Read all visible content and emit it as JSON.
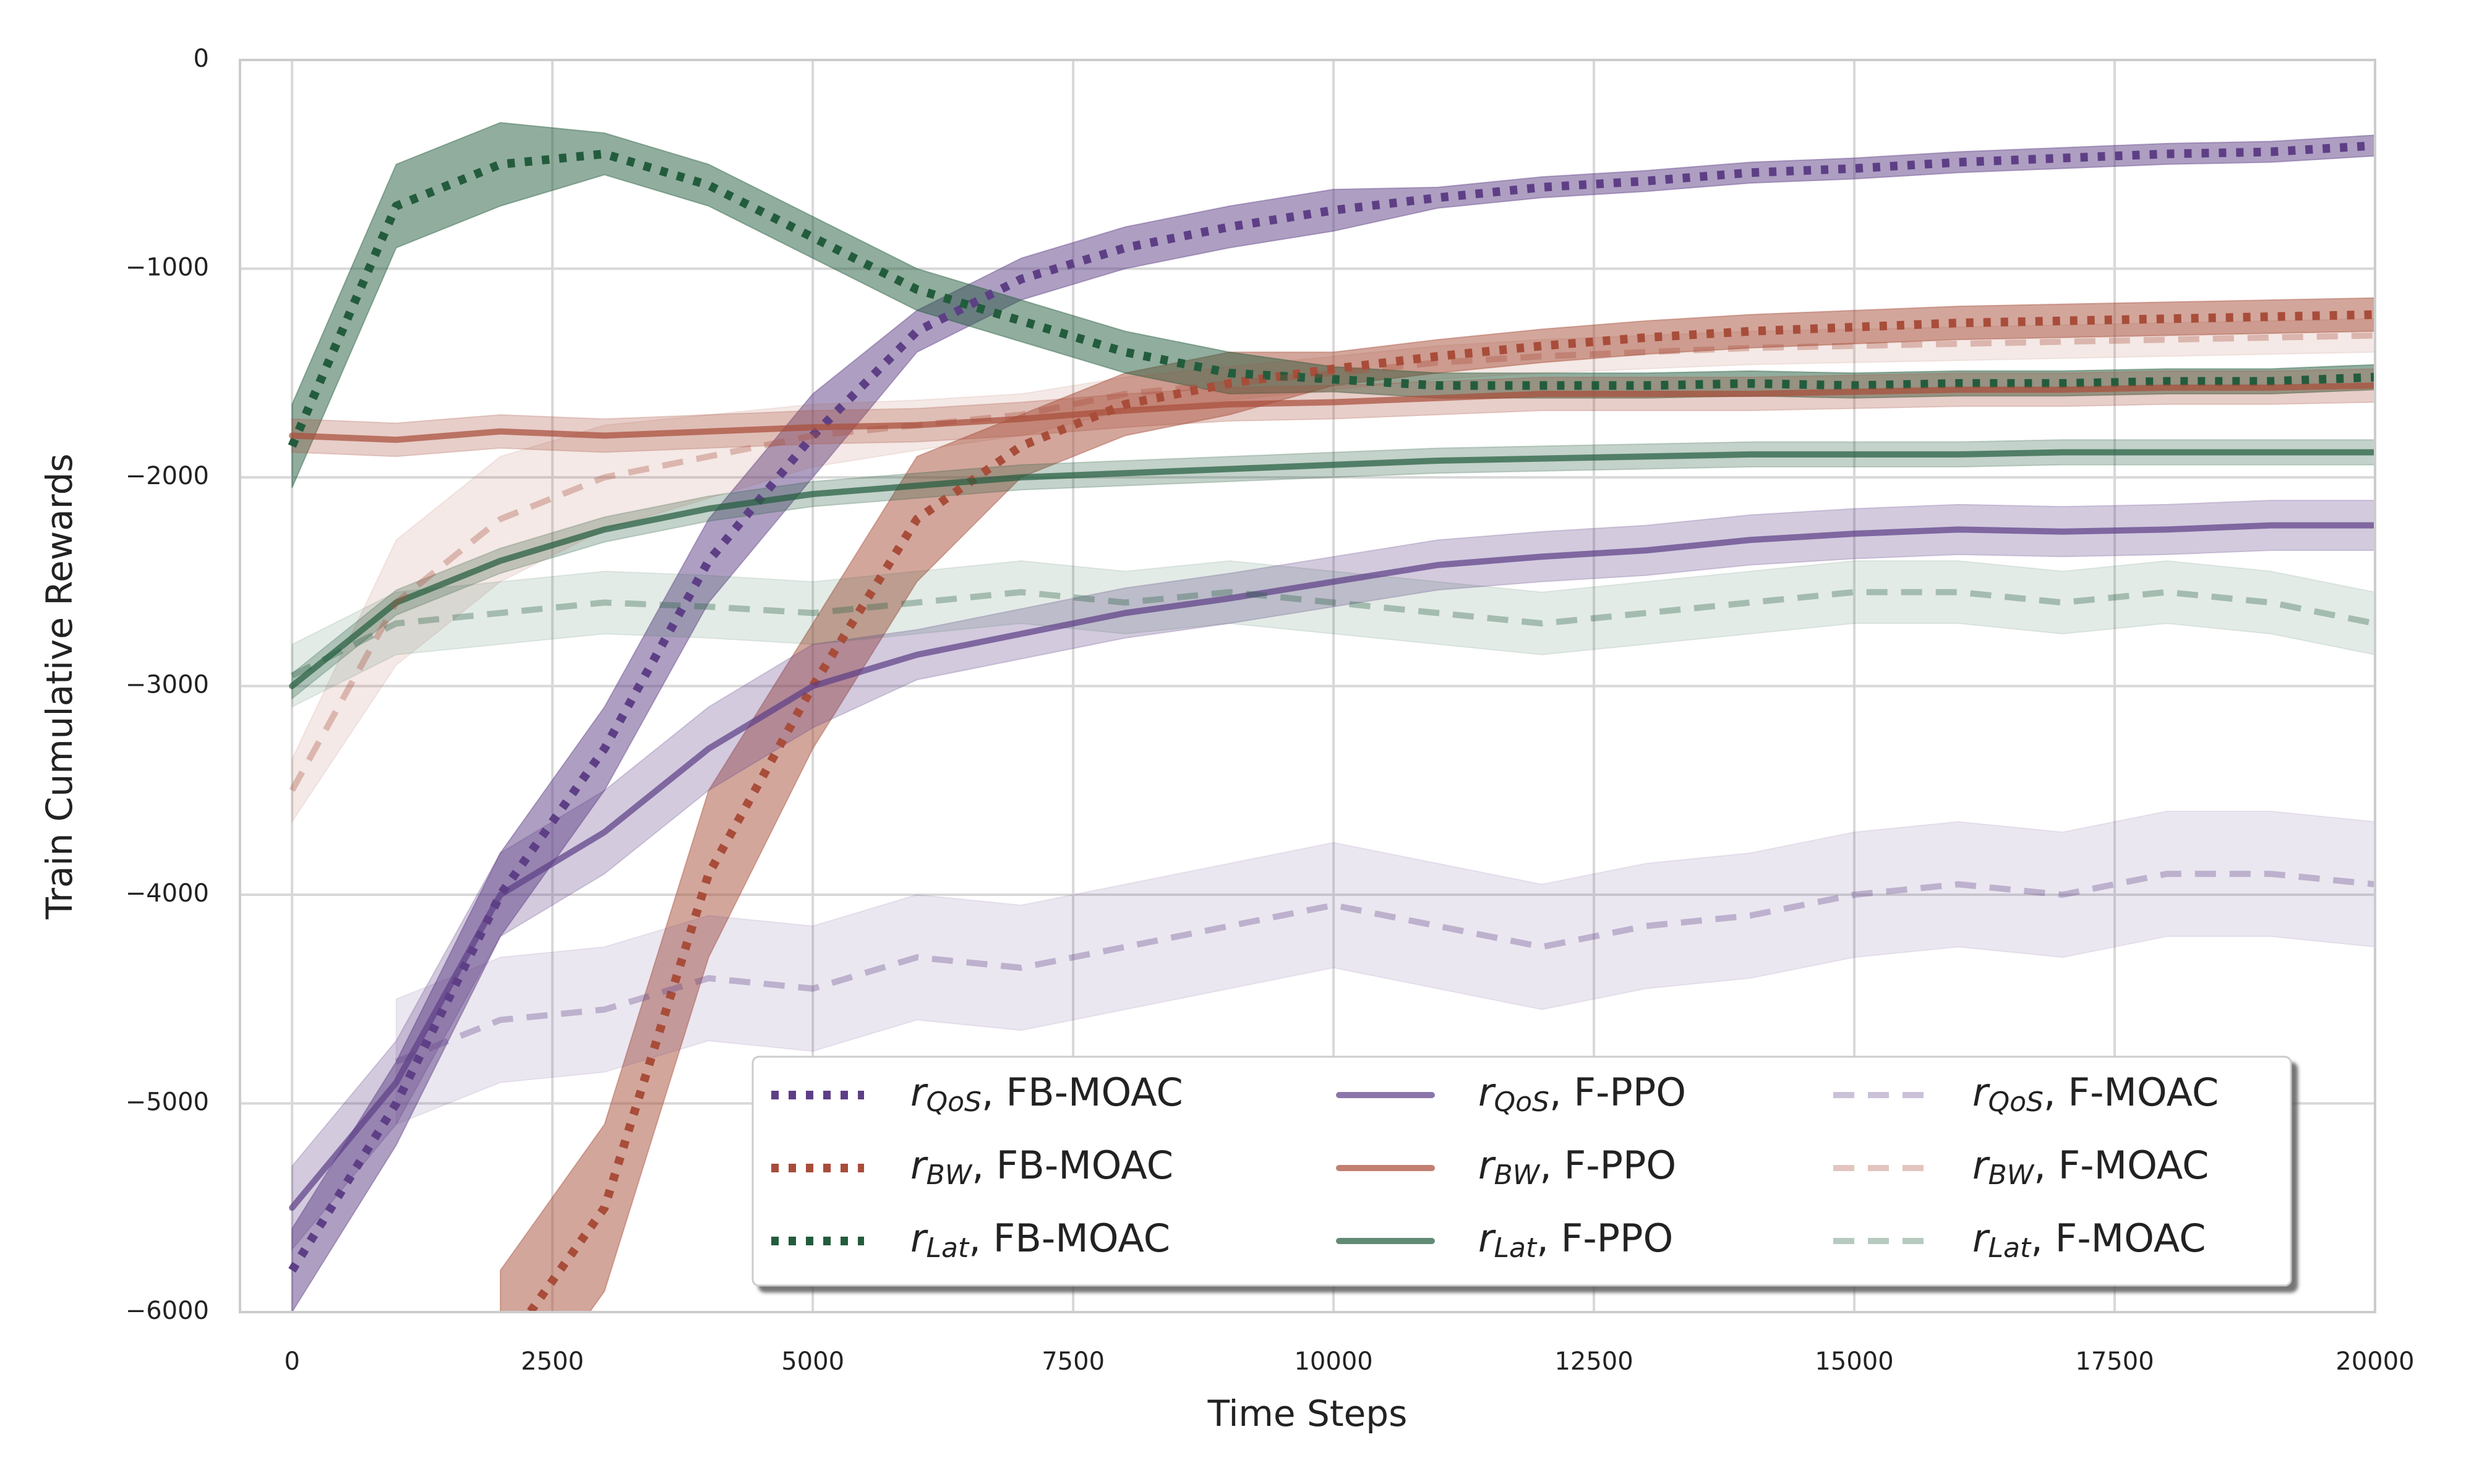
{
  "chart_data": {
    "type": "line",
    "x_label": "Time Steps",
    "y_label": "Train Cumulative Rewards",
    "x": [
      0,
      1000,
      2000,
      3000,
      4000,
      5000,
      6000,
      7000,
      8000,
      9000,
      10000,
      11000,
      12000,
      13000,
      14000,
      15000,
      16000,
      17000,
      18000,
      19000,
      20000
    ],
    "xlim": [
      -500,
      20000
    ],
    "ylim": [
      -6000,
      0
    ],
    "xticks": [
      0,
      2500,
      5000,
      7500,
      10000,
      12500,
      15000,
      17500,
      20000
    ],
    "yticks": [
      0,
      {
        "value": -1000,
        "label": "−1000"
      },
      {
        "value": -2000,
        "label": "−2000"
      },
      {
        "value": -3000,
        "label": "−3000"
      },
      {
        "value": -4000,
        "label": "−4000"
      },
      {
        "value": -5000,
        "label": "−5000"
      },
      {
        "value": -6000,
        "label": "−6000"
      }
    ],
    "grid": true,
    "legend": "lower right",
    "series": [
      {
        "name": "rQoS, FB-MOAC",
        "color": "#5e3f86",
        "style": "dotted",
        "alpha": 1,
        "values": [
          -5800,
          -5000,
          -4000,
          -3300,
          -2400,
          -1800,
          -1300,
          -1050,
          -900,
          -800,
          -720,
          -660,
          -610,
          -580,
          -540,
          -520,
          -490,
          -470,
          -450,
          -440,
          -410
        ],
        "lower": [
          -6000,
          -5200,
          -4200,
          -3500,
          -2600,
          -2000,
          -1400,
          -1150,
          -1000,
          -900,
          -820,
          -710,
          -660,
          -630,
          -590,
          -570,
          -540,
          -520,
          -500,
          -490,
          -460
        ],
        "upper": [
          -5600,
          -4800,
          -3800,
          -3100,
          -2200,
          -1600,
          -1200,
          -950,
          -800,
          -700,
          -620,
          -610,
          -560,
          -530,
          -490,
          -470,
          -440,
          -420,
          -400,
          -390,
          -360
        ]
      },
      {
        "name": "rBW, FB-MOAC",
        "color": "#a84d3a",
        "style": "dotted",
        "alpha": 1,
        "values": [
          null,
          null,
          -6200,
          -5500,
          -3900,
          -3000,
          -2200,
          -1850,
          -1650,
          -1550,
          -1480,
          -1420,
          -1370,
          -1330,
          -1300,
          -1280,
          -1260,
          -1250,
          -1240,
          -1230,
          -1220
        ],
        "lower": [
          null,
          null,
          -6600,
          -5900,
          -4300,
          -3300,
          -2500,
          -2000,
          -1800,
          -1700,
          -1560,
          -1500,
          -1450,
          -1410,
          -1380,
          -1360,
          -1340,
          -1330,
          -1320,
          -1310,
          -1300
        ],
        "upper": [
          null,
          null,
          -5800,
          -5100,
          -3500,
          -2700,
          -1900,
          -1700,
          -1500,
          -1400,
          -1400,
          -1340,
          -1290,
          -1250,
          -1220,
          -1200,
          -1180,
          -1170,
          -1160,
          -1150,
          -1140
        ]
      },
      {
        "name": "rLat, FB-MOAC",
        "color": "#235c3d",
        "style": "dotted",
        "alpha": 1,
        "values": [
          -1850,
          -700,
          -500,
          -450,
          -600,
          -850,
          -1100,
          -1250,
          -1400,
          -1500,
          -1530,
          -1560,
          -1560,
          -1560,
          -1550,
          -1560,
          -1550,
          -1550,
          -1540,
          -1540,
          -1520
        ],
        "lower": [
          -2050,
          -900,
          -700,
          -550,
          -700,
          -950,
          -1200,
          -1350,
          -1500,
          -1600,
          -1590,
          -1620,
          -1620,
          -1620,
          -1610,
          -1620,
          -1610,
          -1610,
          -1600,
          -1600,
          -1580
        ],
        "upper": [
          -1650,
          -500,
          -300,
          -350,
          -500,
          -750,
          -1000,
          -1150,
          -1300,
          -1400,
          -1470,
          -1500,
          -1500,
          -1500,
          -1490,
          -1500,
          -1490,
          -1490,
          -1480,
          -1480,
          -1460
        ]
      },
      {
        "name": "rQoS, F-PPO",
        "color": "#5e3f86",
        "style": "solid",
        "alpha": 0.55,
        "values": [
          -5500,
          -4900,
          -4000,
          -3700,
          -3300,
          -3000,
          -2850,
          -2750,
          -2650,
          -2580,
          -2500,
          -2420,
          -2380,
          -2350,
          -2300,
          -2270,
          -2250,
          -2260,
          -2250,
          -2230,
          -2230
        ],
        "lower": [
          -5700,
          -5100,
          -4200,
          -3900,
          -3500,
          -3200,
          -2970,
          -2870,
          -2770,
          -2700,
          -2620,
          -2540,
          -2500,
          -2470,
          -2420,
          -2390,
          -2370,
          -2380,
          -2370,
          -2350,
          -2350
        ],
        "upper": [
          -5300,
          -4700,
          -3800,
          -3500,
          -3100,
          -2800,
          -2730,
          -2630,
          -2530,
          -2460,
          -2380,
          -2300,
          -2260,
          -2230,
          -2180,
          -2150,
          -2130,
          -2140,
          -2130,
          -2110,
          -2110
        ]
      },
      {
        "name": "rBW, F-PPO",
        "color": "#a84d3a",
        "style": "solid",
        "alpha": 0.55,
        "values": [
          -1800,
          -1820,
          -1780,
          -1800,
          -1780,
          -1760,
          -1750,
          -1720,
          -1680,
          -1650,
          -1640,
          -1620,
          -1600,
          -1600,
          -1600,
          -1590,
          -1580,
          -1580,
          -1570,
          -1570,
          -1560
        ],
        "lower": [
          -1880,
          -1900,
          -1860,
          -1880,
          -1860,
          -1840,
          -1830,
          -1800,
          -1760,
          -1730,
          -1720,
          -1700,
          -1680,
          -1680,
          -1680,
          -1670,
          -1660,
          -1660,
          -1650,
          -1650,
          -1640
        ],
        "upper": [
          -1720,
          -1740,
          -1700,
          -1720,
          -1700,
          -1680,
          -1670,
          -1640,
          -1600,
          -1570,
          -1560,
          -1540,
          -1520,
          -1520,
          -1520,
          -1510,
          -1500,
          -1500,
          -1490,
          -1490,
          -1480
        ]
      },
      {
        "name": "rLat, F-PPO",
        "color": "#235c3d",
        "style": "solid",
        "alpha": 0.55,
        "values": [
          -3000,
          -2600,
          -2400,
          -2250,
          -2150,
          -2080,
          -2040,
          -2000,
          -1980,
          -1960,
          -1940,
          -1920,
          -1910,
          -1900,
          -1890,
          -1890,
          -1890,
          -1880,
          -1880,
          -1880,
          -1880
        ],
        "lower": [
          -3060,
          -2660,
          -2460,
          -2310,
          -2210,
          -2140,
          -2100,
          -2060,
          -2040,
          -2020,
          -2000,
          -1980,
          -1970,
          -1960,
          -1950,
          -1950,
          -1950,
          -1940,
          -1940,
          -1940,
          -1940
        ],
        "upper": [
          -2940,
          -2540,
          -2340,
          -2190,
          -2090,
          -2020,
          -1980,
          -1940,
          -1920,
          -1900,
          -1880,
          -1860,
          -1850,
          -1840,
          -1830,
          -1830,
          -1830,
          -1820,
          -1820,
          -1820,
          -1820
        ]
      },
      {
        "name": "rQoS, F-MOAC",
        "color": "#5e3f86",
        "style": "dashed",
        "alpha": 0.25,
        "values": [
          null,
          -4800,
          -4600,
          -4550,
          -4400,
          -4450,
          -4300,
          -4350,
          -4250,
          -4150,
          -4050,
          -4150,
          -4250,
          -4150,
          -4100,
          -4000,
          -3950,
          -4000,
          -3900,
          -3900,
          -3950
        ],
        "lower": [
          null,
          -5100,
          -4900,
          -4850,
          -4700,
          -4750,
          -4600,
          -4650,
          -4550,
          -4450,
          -4350,
          -4450,
          -4550,
          -4450,
          -4400,
          -4300,
          -4250,
          -4300,
          -4200,
          -4200,
          -4250
        ],
        "upper": [
          null,
          -4500,
          -4300,
          -4250,
          -4100,
          -4150,
          -4000,
          -4050,
          -3950,
          -3850,
          -3750,
          -3850,
          -3950,
          -3850,
          -3800,
          -3700,
          -3650,
          -3700,
          -3600,
          -3600,
          -3650
        ]
      },
      {
        "name": "rBW, F-MOAC",
        "color": "#a84d3a",
        "style": "dashed",
        "alpha": 0.25,
        "values": [
          -3500,
          -2600,
          -2200,
          -2000,
          -1900,
          -1800,
          -1750,
          -1700,
          -1600,
          -1550,
          -1500,
          -1450,
          -1420,
          -1400,
          -1380,
          -1370,
          -1360,
          -1350,
          -1340,
          -1330,
          -1320
        ],
        "lower": [
          -3650,
          -2900,
          -2500,
          -2250,
          -2100,
          -1950,
          -1870,
          -1800,
          -1680,
          -1630,
          -1580,
          -1530,
          -1500,
          -1480,
          -1460,
          -1450,
          -1440,
          -1430,
          -1420,
          -1410,
          -1400
        ],
        "upper": [
          -3350,
          -2300,
          -1900,
          -1750,
          -1700,
          -1650,
          -1630,
          -1600,
          -1520,
          -1470,
          -1420,
          -1370,
          -1340,
          -1320,
          -1300,
          -1290,
          -1280,
          -1270,
          -1260,
          -1250,
          -1240
        ]
      },
      {
        "name": "rLat, F-MOAC",
        "color": "#235c3d",
        "style": "dashed",
        "alpha": 0.25,
        "values": [
          -2950,
          -2700,
          -2650,
          -2600,
          -2620,
          -2650,
          -2600,
          -2550,
          -2600,
          -2550,
          -2600,
          -2650,
          -2700,
          -2650,
          -2600,
          -2550,
          -2550,
          -2600,
          -2550,
          -2600,
          -2700
        ],
        "lower": [
          -3100,
          -2850,
          -2800,
          -2750,
          -2770,
          -2800,
          -2750,
          -2700,
          -2750,
          -2700,
          -2750,
          -2800,
          -2850,
          -2800,
          -2750,
          -2700,
          -2700,
          -2750,
          -2700,
          -2750,
          -2850
        ],
        "upper": [
          -2800,
          -2550,
          -2500,
          -2450,
          -2470,
          -2500,
          -2450,
          -2400,
          -2450,
          -2400,
          -2450,
          -2500,
          -2550,
          -2500,
          -2450,
          -2400,
          -2400,
          -2450,
          -2400,
          -2450,
          -2550
        ]
      }
    ]
  }
}
